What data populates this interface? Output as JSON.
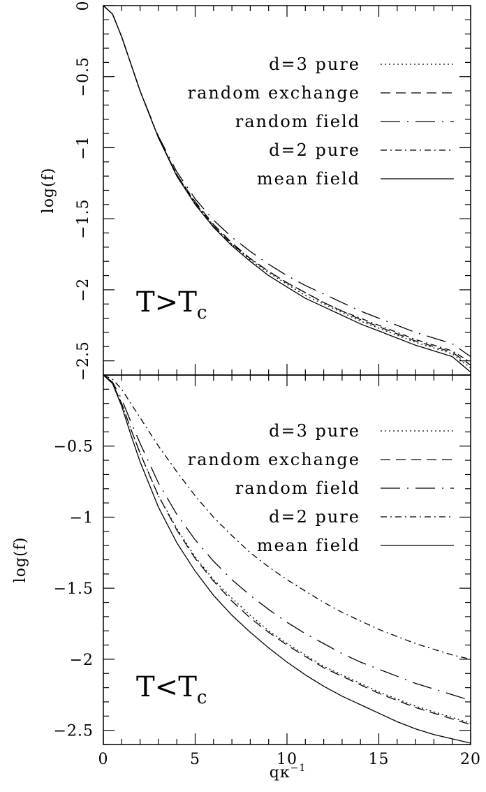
{
  "figure": {
    "xlabel": "qκ",
    "xlabel_sup": "−1",
    "x_ticks": [
      "0",
      "5",
      "10",
      "15",
      "20"
    ]
  },
  "chart_data": [
    {
      "type": "line",
      "panel": "top",
      "label_main": "T>T",
      "label_sub": "c",
      "ylabel": "log(f)",
      "xlim": [
        0,
        20
      ],
      "ylim": [
        -2.6,
        0
      ],
      "y_ticks": [
        {
          "value": 0,
          "label": "0"
        },
        {
          "value": -0.5,
          "label": "−0.5"
        },
        {
          "value": -1,
          "label": "−1"
        },
        {
          "value": -1.5,
          "label": "−1.5"
        },
        {
          "value": -2,
          "label": "−2"
        },
        {
          "value": -2.5,
          "label": "−2.5"
        }
      ],
      "legend_position": "top-right",
      "x": [
        0,
        0.5,
        1,
        1.5,
        2,
        3,
        4,
        5,
        6,
        7,
        8,
        9,
        10,
        11,
        12,
        13,
        14,
        15,
        16,
        17,
        18,
        19,
        20
      ],
      "series": [
        {
          "name": "d=3 pure",
          "style": "dotted",
          "values": [
            0,
            -0.06,
            -0.22,
            -0.41,
            -0.6,
            -0.93,
            -1.19,
            -1.39,
            -1.55,
            -1.68,
            -1.79,
            -1.88,
            -1.96,
            -2.04,
            -2.1,
            -2.16,
            -2.22,
            -2.27,
            -2.32,
            -2.37,
            -2.41,
            -2.45,
            -2.55
          ]
        },
        {
          "name": "random exchange",
          "style": "dashed",
          "values": [
            0,
            -0.06,
            -0.22,
            -0.41,
            -0.6,
            -0.93,
            -1.19,
            -1.38,
            -1.54,
            -1.67,
            -1.78,
            -1.87,
            -1.95,
            -2.02,
            -2.09,
            -2.15,
            -2.21,
            -2.26,
            -2.31,
            -2.36,
            -2.4,
            -2.44,
            -2.53
          ]
        },
        {
          "name": "random field",
          "style": "long-dash-dot",
          "values": [
            0,
            -0.06,
            -0.22,
            -0.41,
            -0.6,
            -0.92,
            -1.17,
            -1.36,
            -1.51,
            -1.63,
            -1.73,
            -1.82,
            -1.9,
            -1.97,
            -2.03,
            -2.09,
            -2.15,
            -2.2,
            -2.25,
            -2.3,
            -2.34,
            -2.38,
            -2.47
          ]
        },
        {
          "name": "d=2 pure",
          "style": "dash-dot",
          "values": [
            0,
            -0.06,
            -0.22,
            -0.41,
            -0.6,
            -0.93,
            -1.19,
            -1.39,
            -1.55,
            -1.68,
            -1.78,
            -1.87,
            -1.95,
            -2.02,
            -2.09,
            -2.15,
            -2.2,
            -2.25,
            -2.3,
            -2.35,
            -2.39,
            -2.43,
            -2.51
          ]
        },
        {
          "name": "mean field",
          "style": "solid",
          "values": [
            0,
            -0.06,
            -0.22,
            -0.41,
            -0.6,
            -0.93,
            -1.2,
            -1.4,
            -1.56,
            -1.69,
            -1.8,
            -1.9,
            -1.98,
            -2.06,
            -2.12,
            -2.18,
            -2.24,
            -2.29,
            -2.34,
            -2.39,
            -2.43,
            -2.47,
            -2.58
          ]
        }
      ]
    },
    {
      "type": "line",
      "panel": "bottom",
      "label_main": "T<T",
      "label_sub": "c",
      "ylabel": "log(f)",
      "xlim": [
        0,
        20
      ],
      "ylim": [
        -2.6,
        0
      ],
      "y_ticks": [
        {
          "value": -0.5,
          "label": "−0.5"
        },
        {
          "value": -1,
          "label": "−1"
        },
        {
          "value": -1.5,
          "label": "−1.5"
        },
        {
          "value": -2,
          "label": "−2"
        },
        {
          "value": -2.5,
          "label": "−2.5"
        }
      ],
      "legend_position": "top-right",
      "x": [
        0,
        0.5,
        1,
        1.5,
        2,
        3,
        4,
        5,
        6,
        7,
        8,
        9,
        10,
        11,
        12,
        13,
        14,
        15,
        16,
        17,
        18,
        19,
        20
      ],
      "series": [
        {
          "name": "d=3 pure",
          "style": "dotted",
          "values": [
            0,
            -0.06,
            -0.2,
            -0.38,
            -0.55,
            -0.85,
            -1.08,
            -1.28,
            -1.44,
            -1.57,
            -1.69,
            -1.8,
            -1.89,
            -1.97,
            -2.05,
            -2.11,
            -2.17,
            -2.23,
            -2.28,
            -2.33,
            -2.37,
            -2.41,
            -2.45
          ]
        },
        {
          "name": "random exchange",
          "style": "dashed",
          "values": [
            0,
            -0.06,
            -0.2,
            -0.38,
            -0.55,
            -0.85,
            -1.09,
            -1.29,
            -1.45,
            -1.59,
            -1.71,
            -1.81,
            -1.9,
            -1.98,
            -2.06,
            -2.12,
            -2.18,
            -2.24,
            -2.29,
            -2.34,
            -2.38,
            -2.42,
            -2.46
          ]
        },
        {
          "name": "random field",
          "style": "long-dash-dot",
          "values": [
            0,
            -0.05,
            -0.17,
            -0.33,
            -0.48,
            -0.76,
            -0.98,
            -1.16,
            -1.31,
            -1.44,
            -1.55,
            -1.65,
            -1.74,
            -1.82,
            -1.89,
            -1.96,
            -2.02,
            -2.07,
            -2.12,
            -2.17,
            -2.21,
            -2.25,
            -2.29
          ]
        },
        {
          "name": "d=2 pure",
          "style": "dash-dot",
          "values": [
            0,
            -0.03,
            -0.1,
            -0.2,
            -0.3,
            -0.5,
            -0.68,
            -0.85,
            -1.0,
            -1.13,
            -1.25,
            -1.35,
            -1.44,
            -1.52,
            -1.6,
            -1.67,
            -1.73,
            -1.79,
            -1.84,
            -1.89,
            -1.93,
            -1.97,
            -2.0
          ]
        },
        {
          "name": "mean field",
          "style": "solid",
          "values": [
            0,
            -0.06,
            -0.22,
            -0.42,
            -0.61,
            -0.93,
            -1.18,
            -1.38,
            -1.55,
            -1.69,
            -1.81,
            -1.92,
            -2.02,
            -2.11,
            -2.19,
            -2.26,
            -2.32,
            -2.38,
            -2.44,
            -2.49,
            -2.53,
            -2.56,
            -2.59
          ]
        }
      ]
    }
  ]
}
